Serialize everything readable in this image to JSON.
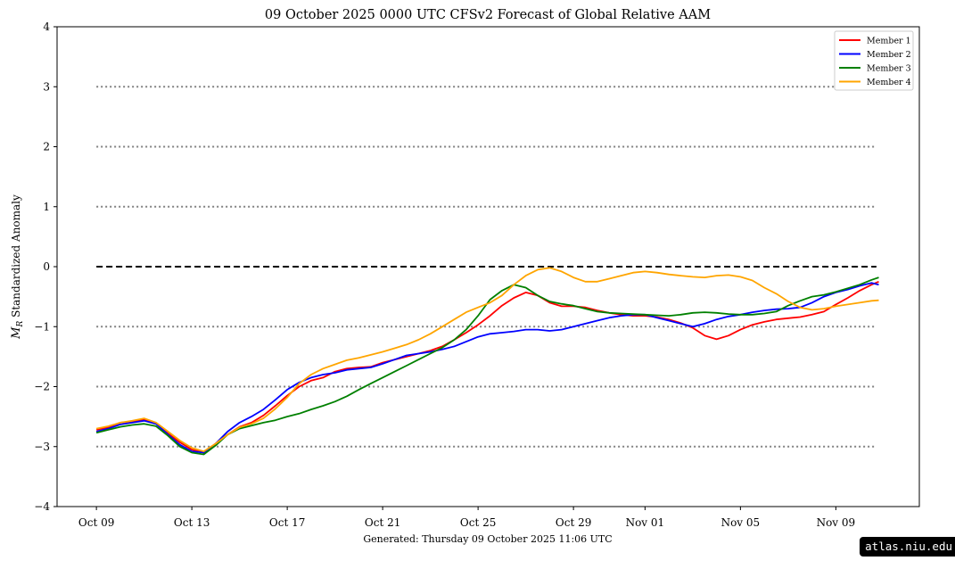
{
  "chart_data": {
    "type": "line",
    "title": "09  October  2025 0000 UTC   CFSv2 Forecast of Global Relative AAM",
    "xlabel": "",
    "ylabel_symbol": "M",
    "ylabel_subscript": "R",
    "ylabel_text": " Standardized Anomaly",
    "ylim": [
      -4,
      4
    ],
    "y_ticks": [
      -4,
      -3,
      -2,
      -1,
      0,
      1,
      2,
      3,
      4
    ],
    "y_tick_labels": [
      "−4",
      "−3",
      "−2",
      "−1",
      "0",
      "1",
      "2",
      "3",
      "4"
    ],
    "x_tick_days": [
      0,
      4,
      8,
      12,
      16,
      20,
      23,
      27,
      31
    ],
    "x_tick_labels": [
      "Oct 09",
      "Oct 13",
      "Oct 17",
      "Oct 21",
      "Oct 25",
      "Oct 29",
      "Nov 01",
      "Nov 05",
      "Nov 09"
    ],
    "xlim_days": [
      -1.65,
      34.5
    ],
    "dotted_reference_lines": [
      3,
      2,
      1,
      -1,
      -2,
      -3
    ],
    "dashed_reference_line": 0,
    "reference_line_span_days": [
      0,
      32.7
    ],
    "grid": false,
    "legend_position": "top-right",
    "series": [
      {
        "name": "Member 1",
        "color": "#ff0000",
        "x": [
          0,
          0.5,
          1,
          1.5,
          2,
          2.5,
          3,
          3.5,
          4,
          4.5,
          5,
          5.5,
          6,
          6.5,
          7,
          7.5,
          8,
          8.5,
          9,
          9.5,
          10,
          10.5,
          11,
          11.5,
          12,
          12.5,
          13,
          13.5,
          14,
          14.5,
          15,
          15.5,
          16,
          16.5,
          17,
          17.5,
          18,
          18.5,
          19,
          19.5,
          20,
          20.5,
          21,
          21.5,
          22,
          22.5,
          23,
          23.5,
          24,
          24.5,
          25,
          25.5,
          26,
          26.5,
          27,
          27.5,
          28,
          28.5,
          29,
          29.5,
          30,
          30.5,
          31,
          31.5,
          32,
          32.5,
          32.8
        ],
        "y": [
          -2.72,
          -2.68,
          -2.6,
          -2.58,
          -2.55,
          -2.62,
          -2.78,
          -2.93,
          -3.05,
          -3.1,
          -2.95,
          -2.8,
          -2.67,
          -2.6,
          -2.48,
          -2.32,
          -2.15,
          -2.0,
          -1.9,
          -1.85,
          -1.75,
          -1.7,
          -1.68,
          -1.67,
          -1.6,
          -1.55,
          -1.5,
          -1.45,
          -1.4,
          -1.33,
          -1.22,
          -1.1,
          -0.97,
          -0.82,
          -0.65,
          -0.52,
          -0.43,
          -0.48,
          -0.6,
          -0.66,
          -0.66,
          -0.68,
          -0.73,
          -0.77,
          -0.8,
          -0.82,
          -0.82,
          -0.84,
          -0.88,
          -0.94,
          -1.02,
          -1.15,
          -1.21,
          -1.15,
          -1.05,
          -0.97,
          -0.92,
          -0.88,
          -0.86,
          -0.84,
          -0.8,
          -0.75,
          -0.63,
          -0.52,
          -0.4,
          -0.3,
          -0.25
        ]
      },
      {
        "name": "Member 2",
        "color": "#0000ff",
        "x": [
          0,
          0.5,
          1,
          1.5,
          2,
          2.5,
          3,
          3.5,
          4,
          4.5,
          5,
          5.5,
          6,
          6.5,
          7,
          7.5,
          8,
          8.5,
          9,
          9.5,
          10,
          10.5,
          11,
          11.5,
          12,
          12.5,
          13,
          13.5,
          14,
          14.5,
          15,
          15.5,
          16,
          16.5,
          17,
          17.5,
          18,
          18.5,
          19,
          19.5,
          20,
          20.5,
          21,
          21.5,
          22,
          22.5,
          23,
          23.5,
          24,
          24.5,
          25,
          25.5,
          26,
          26.5,
          27,
          27.5,
          28,
          28.5,
          29,
          29.5,
          30,
          30.5,
          31,
          31.5,
          32,
          32.5,
          32.8
        ],
        "y": [
          -2.75,
          -2.7,
          -2.63,
          -2.6,
          -2.57,
          -2.62,
          -2.8,
          -2.97,
          -3.08,
          -3.1,
          -2.95,
          -2.75,
          -2.6,
          -2.5,
          -2.38,
          -2.22,
          -2.05,
          -1.93,
          -1.85,
          -1.8,
          -1.77,
          -1.72,
          -1.7,
          -1.68,
          -1.62,
          -1.55,
          -1.48,
          -1.45,
          -1.42,
          -1.38,
          -1.33,
          -1.25,
          -1.17,
          -1.12,
          -1.1,
          -1.08,
          -1.05,
          -1.05,
          -1.07,
          -1.05,
          -1.0,
          -0.95,
          -0.9,
          -0.85,
          -0.82,
          -0.8,
          -0.8,
          -0.85,
          -0.9,
          -0.95,
          -1.0,
          -0.95,
          -0.88,
          -0.83,
          -0.8,
          -0.76,
          -0.73,
          -0.71,
          -0.7,
          -0.68,
          -0.6,
          -0.5,
          -0.43,
          -0.38,
          -0.32,
          -0.27,
          -0.3
        ]
      },
      {
        "name": "Member 3",
        "color": "#008000",
        "x": [
          0,
          0.5,
          1,
          1.5,
          2,
          2.5,
          3,
          3.5,
          4,
          4.5,
          5,
          5.5,
          6,
          6.5,
          7,
          7.5,
          8,
          8.5,
          9,
          9.5,
          10,
          10.5,
          11,
          11.5,
          12,
          12.5,
          13,
          13.5,
          14,
          14.5,
          15,
          15.5,
          16,
          16.5,
          17,
          17.5,
          18,
          18.5,
          19,
          19.5,
          20,
          20.5,
          21,
          21.5,
          22,
          22.5,
          23,
          23.5,
          24,
          24.5,
          25,
          25.5,
          26,
          26.5,
          27,
          27.5,
          28,
          28.5,
          29,
          29.5,
          30,
          30.5,
          31,
          31.5,
          32,
          32.5,
          32.8
        ],
        "y": [
          -2.77,
          -2.72,
          -2.67,
          -2.64,
          -2.62,
          -2.66,
          -2.82,
          -3.0,
          -3.1,
          -3.13,
          -2.98,
          -2.8,
          -2.7,
          -2.65,
          -2.6,
          -2.56,
          -2.5,
          -2.45,
          -2.38,
          -2.32,
          -2.25,
          -2.16,
          -2.05,
          -1.95,
          -1.85,
          -1.75,
          -1.65,
          -1.55,
          -1.45,
          -1.35,
          -1.22,
          -1.05,
          -0.82,
          -0.55,
          -0.4,
          -0.3,
          -0.35,
          -0.48,
          -0.58,
          -0.62,
          -0.65,
          -0.7,
          -0.75,
          -0.77,
          -0.78,
          -0.79,
          -0.8,
          -0.81,
          -0.82,
          -0.8,
          -0.77,
          -0.76,
          -0.77,
          -0.79,
          -0.8,
          -0.8,
          -0.78,
          -0.75,
          -0.65,
          -0.57,
          -0.5,
          -0.47,
          -0.42,
          -0.36,
          -0.3,
          -0.22,
          -0.18
        ]
      },
      {
        "name": "Member 4",
        "color": "#ffa500",
        "x": [
          0,
          0.5,
          1,
          1.5,
          2,
          2.5,
          3,
          3.5,
          4,
          4.5,
          5,
          5.5,
          6,
          6.5,
          7,
          7.5,
          8,
          8.5,
          9,
          9.5,
          10,
          10.5,
          11,
          11.5,
          12,
          12.5,
          13,
          13.5,
          14,
          14.5,
          15,
          15.5,
          16,
          16.5,
          17,
          17.5,
          18,
          18.5,
          19,
          19.5,
          20,
          20.5,
          21,
          21.5,
          22,
          22.5,
          23,
          23.5,
          24,
          24.5,
          25,
          25.5,
          26,
          26.5,
          27,
          27.5,
          28,
          28.5,
          29,
          29.5,
          30,
          30.5,
          31,
          31.5,
          32,
          32.5,
          32.8
        ],
        "y": [
          -2.7,
          -2.66,
          -2.6,
          -2.57,
          -2.53,
          -2.6,
          -2.75,
          -2.9,
          -3.02,
          -3.08,
          -2.95,
          -2.8,
          -2.68,
          -2.62,
          -2.53,
          -2.37,
          -2.18,
          -1.95,
          -1.8,
          -1.7,
          -1.63,
          -1.56,
          -1.52,
          -1.47,
          -1.42,
          -1.36,
          -1.3,
          -1.22,
          -1.12,
          -1.0,
          -0.88,
          -0.76,
          -0.68,
          -0.6,
          -0.48,
          -0.3,
          -0.15,
          -0.05,
          -0.02,
          -0.08,
          -0.18,
          -0.25,
          -0.25,
          -0.2,
          -0.15,
          -0.1,
          -0.08,
          -0.1,
          -0.13,
          -0.15,
          -0.17,
          -0.18,
          -0.15,
          -0.14,
          -0.17,
          -0.23,
          -0.35,
          -0.45,
          -0.58,
          -0.68,
          -0.72,
          -0.7,
          -0.66,
          -0.63,
          -0.6,
          -0.57,
          -0.56
        ]
      }
    ]
  },
  "footer": {
    "generated": "Generated: Thursday  09  October  2025  11:06 UTC"
  },
  "credit": {
    "text": "atlas.niu.edu"
  }
}
